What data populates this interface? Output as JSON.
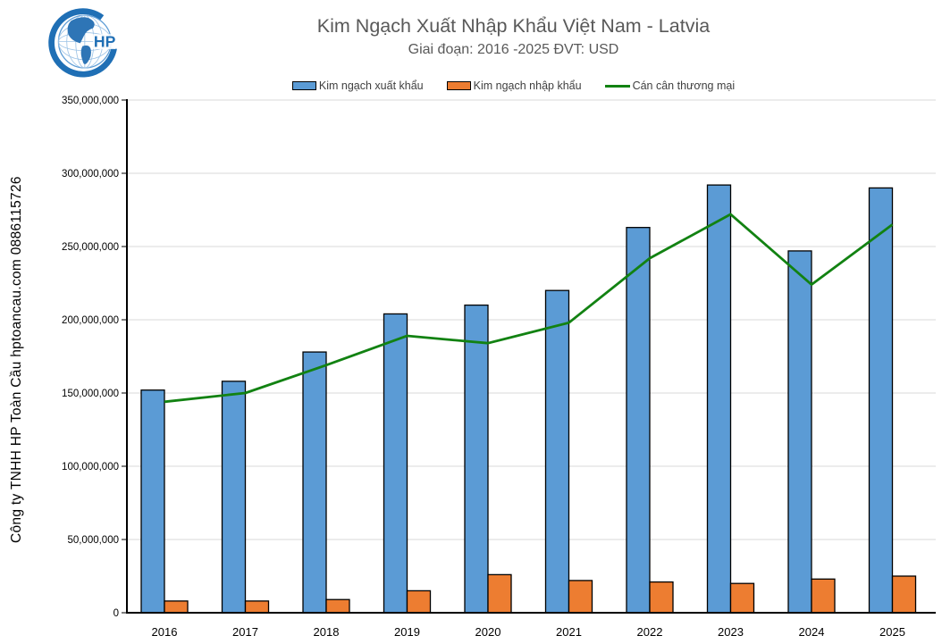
{
  "watermark": "Công ty TNHH HP Toàn Cầu hptoancau.com 0886115726",
  "logo": {
    "icon": "globe-hp-logo",
    "brand_letters": "HP",
    "brand_color": "#1F6FB5"
  },
  "chart_data": {
    "type": "bar",
    "title": "Kim Ngạch Xuất Nhập Khẩu Việt Nam - Latvia",
    "subtitle": "Giai đoạn: 2016 -2025  ĐVT: USD",
    "categories": [
      "2016",
      "2017",
      "2018",
      "2019",
      "2020",
      "2021",
      "2022",
      "2023",
      "2024",
      "2025"
    ],
    "series": [
      {
        "name": "Kim ngạch xuất khẩu",
        "kind": "bar",
        "color": "#5B9BD5",
        "values": [
          152000000,
          158000000,
          178000000,
          204000000,
          210000000,
          220000000,
          263000000,
          292000000,
          247000000,
          290000000
        ]
      },
      {
        "name": "Kim ngạch nhập khẩu",
        "kind": "bar",
        "color": "#ED7D31",
        "values": [
          8000000,
          8000000,
          9000000,
          15000000,
          26000000,
          22000000,
          21000000,
          20000000,
          23000000,
          25000000
        ]
      },
      {
        "name": "Cán cân thương mại",
        "kind": "line",
        "color": "#128212",
        "values": [
          144000000,
          150000000,
          169000000,
          189000000,
          184000000,
          198000000,
          242000000,
          272000000,
          224000000,
          265000000
        ]
      }
    ],
    "ylim": [
      0,
      350000000
    ],
    "ytick_step": 50000000,
    "ytick_labels": [
      "0",
      "50,000,000",
      "100,000,000",
      "150,000,000",
      "200,000,000",
      "250,000,000",
      "300,000,000",
      "350,000,000"
    ],
    "grid": true,
    "gridline_color": "#D9D9D9",
    "axis_color": "#000000",
    "bar_border_color": "#000000",
    "legend_position": "top"
  }
}
